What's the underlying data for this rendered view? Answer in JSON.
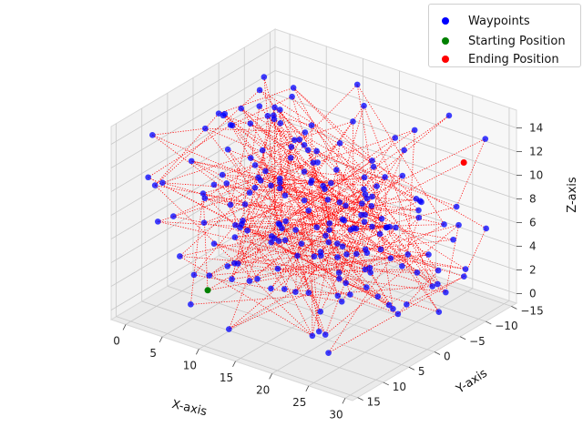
{
  "chart_data": {
    "type": "scatter",
    "dimensions": 3,
    "xlabel": "X-axis",
    "ylabel": "Y-axis",
    "zlabel": "Z-axis",
    "x_ticks": [
      0,
      5,
      10,
      15,
      20,
      25,
      30
    ],
    "y_ticks": [
      -15,
      -10,
      -5,
      0,
      5,
      10,
      15
    ],
    "z_ticks": [
      0,
      2,
      4,
      6,
      8,
      10,
      12,
      14
    ],
    "xlim": [
      -2,
      31
    ],
    "ylim": [
      -16,
      16
    ],
    "zlim": [
      -0.8,
      15.5
    ],
    "grid": true,
    "legend_placement": "top-right",
    "series": [
      {
        "name": "Waypoints",
        "color": "#0000ff",
        "count": 200
      },
      {
        "name": "Starting Position",
        "color": "#008000",
        "point": [
          7,
          10,
          2
        ]
      },
      {
        "name": "Ending Position",
        "color": "#ff0000",
        "point": [
          28,
          -10,
          12
        ]
      }
    ],
    "connection_lines": {
      "style": "dotted",
      "color": "#ff0000"
    }
  }
}
